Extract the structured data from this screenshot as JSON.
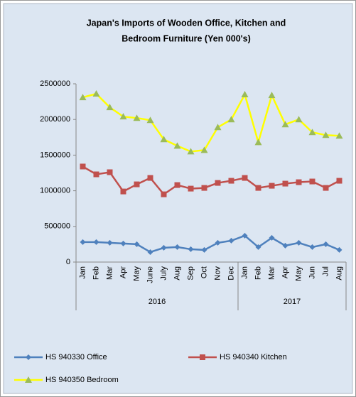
{
  "chart_data": {
    "type": "line",
    "title": [
      "Japan's Imports of  Wooden  Office, Kitchen and",
      "Bedroom Furniture (Yen 000's)"
    ],
    "category_groups": [
      {
        "label": "2016",
        "categories": [
          "Jan",
          "Feb",
          "Mar",
          "Apr",
          "May",
          "June",
          "July",
          "Aug",
          "Sep",
          "Oct",
          "Nov",
          "Dec"
        ]
      },
      {
        "label": "2017",
        "categories": [
          "Jan",
          "Feb",
          "Mar",
          "Apr",
          "May",
          "Jun",
          "Jul",
          "Aug"
        ]
      }
    ],
    "series": [
      {
        "name": "HS 940330 Office",
        "color": "#4f81bd",
        "marker": "diamond",
        "marker_color": "#4f81bd",
        "values": [
          280000,
          280000,
          270000,
          260000,
          250000,
          140000,
          200000,
          210000,
          180000,
          170000,
          270000,
          300000,
          370000,
          210000,
          340000,
          230000,
          270000,
          210000,
          250000,
          170000
        ]
      },
      {
        "name": "HS 940340 Kitchen",
        "color": "#c0504d",
        "marker": "square",
        "marker_color": "#c0504d",
        "values": [
          1340000,
          1230000,
          1260000,
          990000,
          1090000,
          1180000,
          950000,
          1080000,
          1030000,
          1040000,
          1110000,
          1140000,
          1180000,
          1040000,
          1070000,
          1100000,
          1120000,
          1130000,
          1040000,
          1140000
        ]
      },
      {
        "name": "HS 940350 Bedroom",
        "color": "#ffff00",
        "marker": "triangle",
        "marker_color": "#9bbb59",
        "values": [
          2310000,
          2360000,
          2170000,
          2040000,
          2020000,
          1990000,
          1720000,
          1630000,
          1550000,
          1570000,
          1890000,
          2000000,
          2350000,
          1680000,
          2340000,
          1930000,
          2000000,
          1820000,
          1780000,
          1770000
        ]
      }
    ],
    "ylim": [
      0,
      2500000
    ],
    "yticks": [
      0,
      500000,
      1000000,
      1500000,
      2000000,
      2500000
    ]
  }
}
